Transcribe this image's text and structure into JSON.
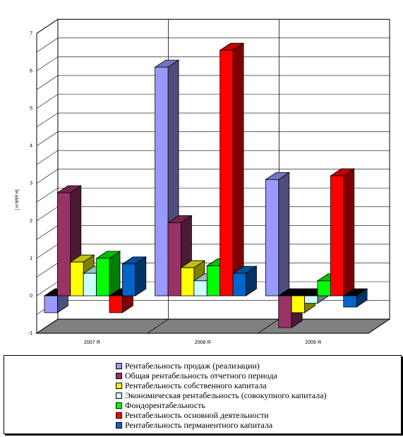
{
  "chart_data": {
    "type": "bar",
    "ylabel": "[ Н 8ЯЯ Н]",
    "ylim": [
      -1,
      7
    ],
    "yticks": [
      "-1",
      "0",
      "1",
      "2",
      "3",
      "4",
      "5",
      "6",
      "7"
    ],
    "grid": true,
    "legend_position": "bottom",
    "categories": [
      "2007 Я",
      "2008 Я",
      "2009 Я"
    ],
    "series": [
      {
        "name": "Рентабельность продаж (реализации)",
        "color": "#9999FF",
        "values": [
          -0.45,
          6.1,
          3.1
        ]
      },
      {
        "name": "Общая рентабельность отчетного периода",
        "color": "#993366",
        "values": [
          2.75,
          1.95,
          -0.85
        ]
      },
      {
        "name": "Рентабельность собственного капитала",
        "color": "#FFFF00",
        "values": [
          0.9,
          0.75,
          -0.45
        ]
      },
      {
        "name": "Экономическая рентабельность (совокупного капитала)",
        "color": "#CCFFFF",
        "values": [
          0.6,
          0.4,
          -0.2
        ]
      },
      {
        "name": "Фондорентабельность",
        "color": "#00FF00",
        "values": [
          1.0,
          0.8,
          0.4
        ]
      },
      {
        "name": "Рентабельность основной деятельности",
        "color": "#FF0000",
        "values": [
          -0.45,
          6.55,
          3.2
        ]
      },
      {
        "name": "Рентабельность перманентного капитала",
        "color": "#0066CC",
        "values": [
          0.85,
          0.6,
          -0.3
        ]
      }
    ]
  }
}
